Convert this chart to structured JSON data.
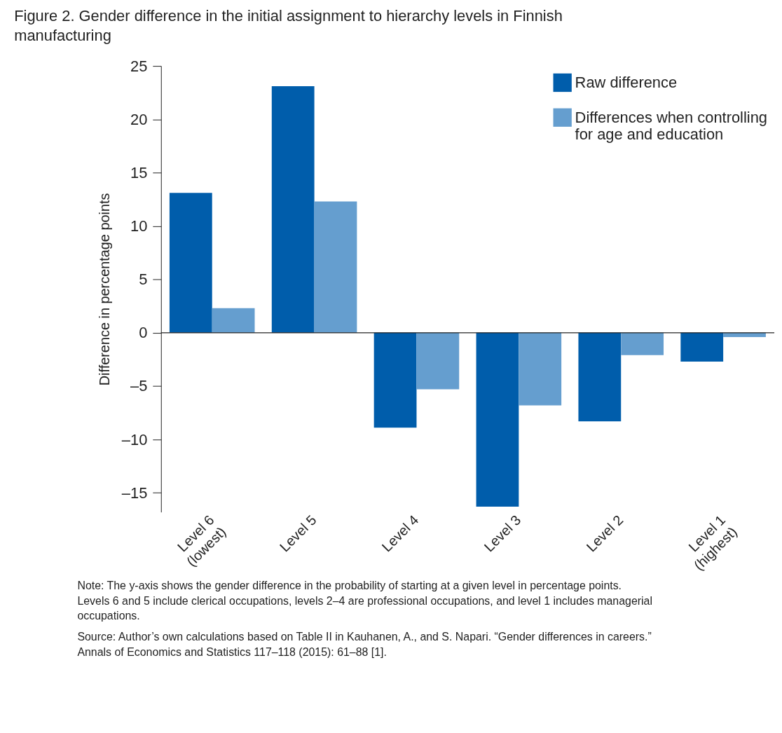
{
  "chart_data": {
    "type": "bar",
    "title": "Figure 2. Gender difference in the initial assignment to hierarchy levels in Finnish manufacturing",
    "ylabel": "Difference in percentage points",
    "categories": [
      "Level 6\n(lowest)",
      "Level 5",
      "Level 4",
      "Level 3",
      "Level 2",
      "Level 1\n(highest)"
    ],
    "series": [
      {
        "name": "Raw difference",
        "color": "#005dab",
        "values": [
          13.1,
          23.1,
          -8.9,
          -16.3,
          -8.3,
          -2.7
        ]
      },
      {
        "name": "Differences when controlling\nfor age and education",
        "color": "#659ecf",
        "values": [
          2.3,
          12.3,
          -5.3,
          -6.8,
          -2.1,
          -0.4
        ]
      }
    ],
    "ylim": [
      -16.8,
      25
    ],
    "yticks": [
      {
        "value": -15,
        "label": "–15"
      },
      {
        "value": -10,
        "label": "–10"
      },
      {
        "value": -5,
        "label": "–5"
      },
      0,
      5,
      10,
      15,
      20,
      25
    ],
    "legend": "top right",
    "annotations": [
      "Note: The y-axis shows the gender difference in the probability of starting at a given level in percentage points. Levels 6 and 5 include clerical occupations, levels 2–4 are professional occupations, and level 1 includes managerial occupations.",
      "Source: Author’s own calculations based on Table II in Kauhanen, A., and S. Napari. “Gender differences in careers.” Annals of Economics and Statistics 117–118 (2015): 61–88 [1]."
    ]
  }
}
